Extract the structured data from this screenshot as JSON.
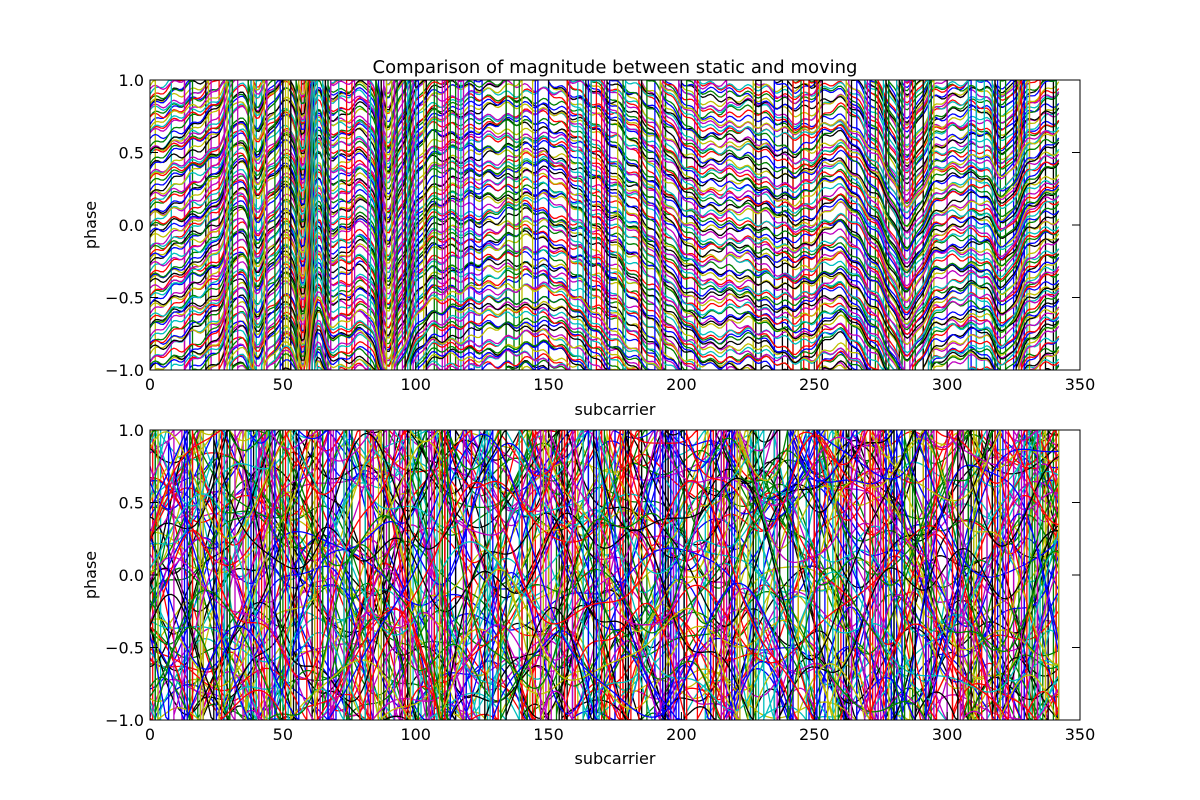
{
  "chart_data": [
    {
      "type": "line",
      "title": "Comparison of magnitude between static and moving",
      "xlabel": "subcarrier",
      "ylabel": "phase",
      "xlim": [
        0,
        350
      ],
      "ylim": [
        -1.0,
        1.0
      ],
      "xticks": [
        "0",
        "50",
        "100",
        "150",
        "200",
        "250",
        "300",
        "350"
      ],
      "yticks": [
        "1.0",
        "0.5",
        "0.0",
        "−0.5",
        "−1.0"
      ],
      "x_range_of_series": [
        0,
        342
      ],
      "grid": false,
      "legend": "none",
      "series_colors": [
        "#0000ff",
        "#008000",
        "#ff0000",
        "#00bfbf",
        "#bf00bf",
        "#bfbf00",
        "#000000"
      ],
      "description": "dense overlapping phase traces that wrap between -1 and 1; traces are smooth and largely parallel, with common bumps near subcarriers 35, 60, 90, 150, 205 and 260"
    },
    {
      "type": "line",
      "title": "",
      "xlabel": "subcarrier",
      "ylabel": "phase",
      "xlim": [
        0,
        350
      ],
      "ylim": [
        -1.0,
        1.0
      ],
      "xticks": [
        "0",
        "50",
        "100",
        "150",
        "200",
        "250",
        "300",
        "350"
      ],
      "yticks": [
        "1.0",
        "0.5",
        "0.0",
        "−0.5",
        "−1.0"
      ],
      "x_range_of_series": [
        0,
        342
      ],
      "grid": false,
      "legend": "none",
      "series_colors": [
        "#0000ff",
        "#008000",
        "#ff0000",
        "#00bfbf",
        "#bf00bf",
        "#bfbf00",
        "#000000"
      ],
      "description": "dense overlapping phase traces that wrap between -1 and 1; traces are irregular and largely uncorrelated"
    }
  ]
}
